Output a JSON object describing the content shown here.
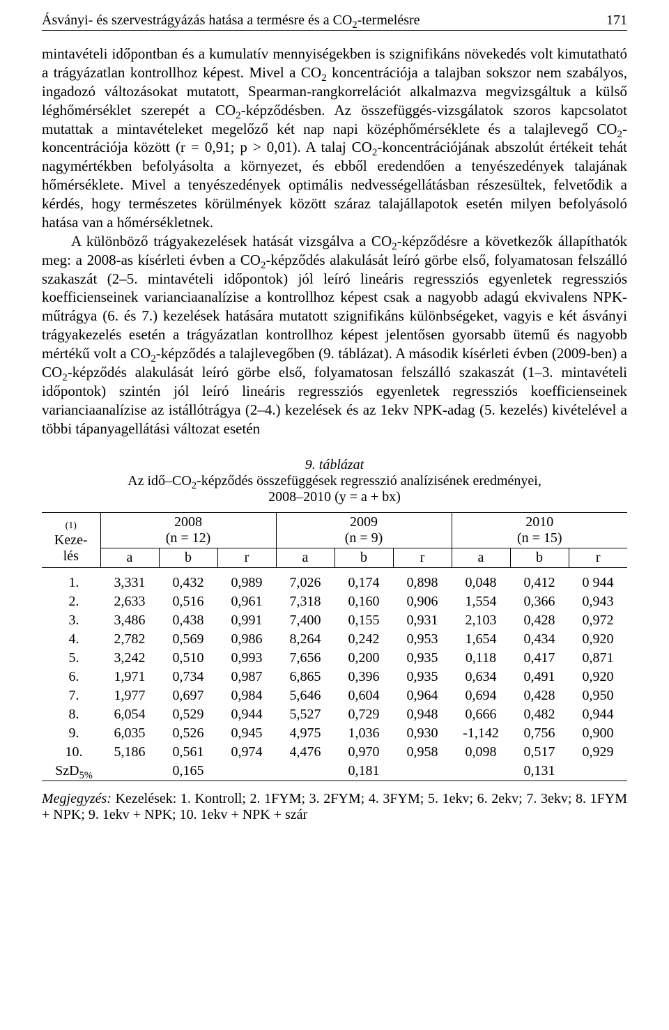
{
  "header": {
    "title_html": "Ásványi- és szervestrágyázás hatása a termésre és a CO<span class=\"sub\">2</span>-termelésre",
    "page_number": "171"
  },
  "paragraphs": {
    "p1_html": "mintavételi időpontban és a kumulatív mennyiségekben is szignifikáns növekedés volt kimutatható a trágyázatlan kontrollhoz képest. Mivel a CO<span class=\"sub\">2</span> koncentrációja a talajban sokszor nem szabályos, ingadozó változásokat mutatott, Spearman-rangkorrelációt alkalmazva megvizsgáltuk a külső léghőmérséklet szerepét a CO<span class=\"sub\">2</span>-képződésben. Az összefüggés-vizsgálatok szoros kapcsolatot mutattak a mintavételeket megelőző két nap napi középhőmérséklete és a talajlevegő CO<span class=\"sub\">2</span>-koncentrációja között (r = 0,91; p &gt; 0,01). A talaj CO<span class=\"sub\">2</span>-koncentrációjának abszolút értékeit tehát nagymértékben befolyásolta a környezet, és ebből eredendően a tenyészedények talajának hőmérséklete. Mivel a tenyészedények optimális nedvességellátásban részesültek, felvetődik a kérdés, hogy természetes körülmények között száraz talajállapotok esetén milyen befolyásoló hatása van a hőmérsékletnek.",
    "p2_html": "<span class=\"indent\"></span>A különböző trágyakezelések hatását vizsgálva a CO<span class=\"sub\">2</span>-képződésre a következők állapíthatók meg: a 2008-as kísérleti évben a CO<span class=\"sub\">2</span>-képződés alakulását leíró görbe első, folyamatosan felszálló szakaszát (2–5. mintavételi időpontok) jól leíró lineáris regressziós egyenletek regressziós koefficienseinek varianciaanalízise a kontrollhoz képest csak a nagyobb adagú ekvivalens NPK-műtrágya (6. és 7.) kezelések hatására mutatott szignifikáns különbségeket, vagyis e két ásványi trágyakezelés esetén a trágyázatlan kontrollhoz képest jelentősen gyorsabb ütemű és nagyobb mértékű volt a CO<span class=\"sub\">2</span>-képződés a talajlevegőben (9. táblázat). A második kísérleti évben (2009-ben) a CO<span class=\"sub\">2</span>-képződés alakulását leíró görbe első, folyamatosan felszálló szakaszát (1–3. mintavételi időpontok) szintén jól leíró lineáris regressziós egyenletek regressziós koefficienseinek varianciaanalízise az istállótrágya (2–4.) kezelések és az 1ekv NPK-adag (5. kezelés) kivételével a többi tápanyagellátási változat esetén"
  },
  "table": {
    "caption_title": "9. táblázat",
    "caption_line2_html": "Az idő–CO<span class=\"sub\">2</span>-képződés összefüggések regresszió analízisének eredményei,",
    "caption_line3": "2008–2010 (y = a + bx)",
    "col1_small": "(1)",
    "col1_label": "Keze-\nlés",
    "years": [
      "2008",
      "2009",
      "2010"
    ],
    "n_labels": [
      "(n = 12)",
      "(n = 9)",
      "(n = 15)"
    ],
    "sub_headers": [
      "a",
      "b",
      "r"
    ],
    "rows": [
      {
        "k": "1.",
        "v": [
          "3,331",
          "0,432",
          "0,989",
          "7,026",
          "0,174",
          "0,898",
          "0,048",
          "0,412",
          "0 944"
        ]
      },
      {
        "k": "2.",
        "v": [
          "2,633",
          "0,516",
          "0,961",
          "7,318",
          "0,160",
          "0,906",
          "1,554",
          "0,366",
          "0,943"
        ]
      },
      {
        "k": "3.",
        "v": [
          "3,486",
          "0,438",
          "0,991",
          "7,400",
          "0,155",
          "0,931",
          "2,103",
          "0,428",
          "0,972"
        ]
      },
      {
        "k": "4.",
        "v": [
          "2,782",
          "0,569",
          "0,986",
          "8,264",
          "0,242",
          "0,953",
          "1,654",
          "0,434",
          "0,920"
        ]
      },
      {
        "k": "5.",
        "v": [
          "3,242",
          "0,510",
          "0,993",
          "7,656",
          "0,200",
          "0,935",
          "0,118",
          "0,417",
          "0,871"
        ]
      },
      {
        "k": "6.",
        "v": [
          "1,971",
          "0,734",
          "0,987",
          "6,865",
          "0,396",
          "0,935",
          "0,634",
          "0,491",
          "0,920"
        ]
      },
      {
        "k": "7.",
        "v": [
          "1,977",
          "0,697",
          "0,984",
          "5,646",
          "0,604",
          "0,964",
          "0,694",
          "0,428",
          "0,950"
        ]
      },
      {
        "k": "8.",
        "v": [
          "6,054",
          "0,529",
          "0,944",
          "5,527",
          "0,729",
          "0,948",
          "0,666",
          "0,482",
          "0,944"
        ]
      },
      {
        "k": "9.",
        "v": [
          "6,035",
          "0,526",
          "0,945",
          "4,975",
          "1,036",
          "0,930",
          "-1,142",
          "0,756",
          "0,900"
        ]
      },
      {
        "k": "10.",
        "v": [
          "5,186",
          "0,561",
          "0,974",
          "4,476",
          "0,970",
          "0,958",
          "0,098",
          "0,517",
          "0,929"
        ]
      }
    ],
    "szd_label_html": "SzD<span class=\"sub\">5%</span>",
    "szd_values": [
      "",
      "0,165",
      "",
      "",
      "0,181",
      "",
      "",
      "0,131",
      ""
    ],
    "footnote_label": "Megjegyzés:",
    "footnote_text": " Kezelések: 1. Kontroll; 2. 1FYM; 3. 2FYM; 4. 3FYM; 5. 1ekv; 6. 2ekv; 7. 3ekv; 8. 1FYM + NPK; 9. 1ekv + NPK; 10. 1ekv + NPK + szár"
  }
}
